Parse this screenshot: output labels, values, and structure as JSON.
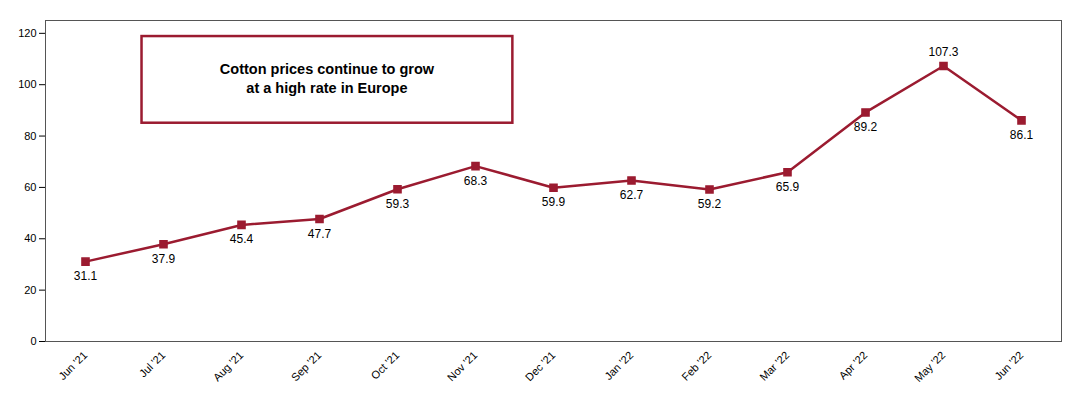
{
  "chart_data": {
    "type": "line",
    "categories": [
      "Jun '21",
      "Jul '21",
      "Aug '21",
      "Sep '21",
      "Oct '21",
      "Nov '21",
      "Dec '21",
      "Jan '22",
      "Feb '22",
      "Mar '22",
      "Apr '22",
      "May '22",
      "Jun '22"
    ],
    "values": [
      31.1,
      37.9,
      45.4,
      47.7,
      59.3,
      68.3,
      59.9,
      62.7,
      59.2,
      65.9,
      89.2,
      107.3,
      86.1
    ],
    "color": "#9B1B30",
    "marker": "square",
    "ylim": [
      0,
      125
    ],
    "yticks": [
      0,
      20,
      40,
      60,
      80,
      100,
      120
    ],
    "grid": false,
    "data_labels": true,
    "annotations": [
      "Cotton prices continue to grow\nat a high rate in Europe"
    ]
  }
}
